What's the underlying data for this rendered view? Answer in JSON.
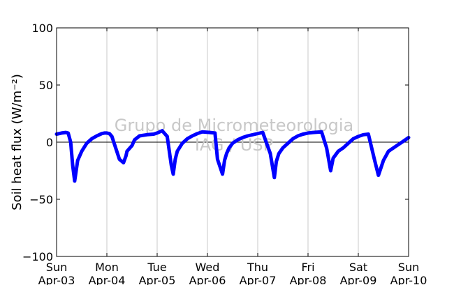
{
  "chart_data": {
    "type": "line",
    "title": "",
    "xlabel": "",
    "ylabel": "Soil heat flux (W/m⁻²)",
    "ylim": [
      -100,
      100
    ],
    "yticks": [
      100,
      50,
      0,
      -50,
      -100
    ],
    "ytick_labels": [
      "100",
      "50",
      "0",
      "−50",
      "−100"
    ],
    "xlim": [
      0,
      7
    ],
    "xticks": [
      {
        "x": 0,
        "day": "Sun",
        "date": "Apr-03"
      },
      {
        "x": 1,
        "day": "Mon",
        "date": "Apr-04"
      },
      {
        "x": 2,
        "day": "Tue",
        "date": "Apr-05"
      },
      {
        "x": 3,
        "day": "Wed",
        "date": "Apr-06"
      },
      {
        "x": 4,
        "day": "Thu",
        "date": "Apr-07"
      },
      {
        "x": 5,
        "day": "Fri",
        "date": "Apr-08"
      },
      {
        "x": 6,
        "day": "Sat",
        "date": "Apr-09"
      },
      {
        "x": 7,
        "day": "Sun",
        "date": "Apr-10"
      }
    ],
    "grid": "vertical",
    "zero_line": true,
    "series": [
      {
        "color": "#0000ff",
        "x": [
          0.0,
          0.1,
          0.18,
          0.23,
          0.28,
          0.32,
          0.36,
          0.42,
          0.5,
          0.6,
          0.7,
          0.8,
          0.9,
          0.95,
          1.0,
          1.05,
          1.1,
          1.25,
          1.33,
          1.38,
          1.4,
          1.5,
          1.55,
          1.65,
          1.8,
          1.93,
          2.0,
          2.1,
          2.2,
          2.28,
          2.32,
          2.36,
          2.4,
          2.5,
          2.6,
          2.7,
          2.8,
          2.9,
          3.05,
          3.15,
          3.2,
          3.3,
          3.34,
          3.38,
          3.43,
          3.5,
          3.6,
          3.7,
          3.8,
          3.95,
          4.1,
          4.25,
          4.33,
          4.37,
          4.42,
          4.5,
          4.6,
          4.7,
          4.8,
          4.9,
          5.0,
          5.1,
          5.27,
          5.37,
          5.45,
          5.5,
          5.6,
          5.7,
          5.8,
          5.9,
          6.0,
          6.1,
          6.2,
          6.32,
          6.4,
          6.5,
          6.6,
          6.7,
          6.8,
          6.9,
          7.0
        ],
        "y": [
          7,
          8,
          8.5,
          8,
          0,
          -20,
          -34,
          -16,
          -8,
          -1,
          3,
          5.5,
          7.5,
          8,
          8,
          7.5,
          5,
          -15,
          -18,
          -12,
          -8,
          -3,
          2,
          5.5,
          6.5,
          7,
          8,
          10,
          5,
          -20,
          -28,
          -15,
          -8,
          -1,
          3,
          5.5,
          7.5,
          9,
          8.5,
          8,
          -15,
          -28,
          -16,
          -10,
          -5,
          -1,
          2,
          4,
          5.5,
          7,
          8.5,
          -10,
          -31,
          -17,
          -10,
          -5,
          -1,
          3,
          5.5,
          7,
          8,
          8.5,
          9,
          -5,
          -25,
          -14,
          -8,
          -5,
          -1,
          3,
          5,
          6.5,
          7,
          -15,
          -29,
          -16,
          -8,
          -5,
          -2,
          1,
          4
        ]
      }
    ],
    "annotations": [
      "Grupo de Micrometeorologia",
      "IAG / USP"
    ]
  }
}
